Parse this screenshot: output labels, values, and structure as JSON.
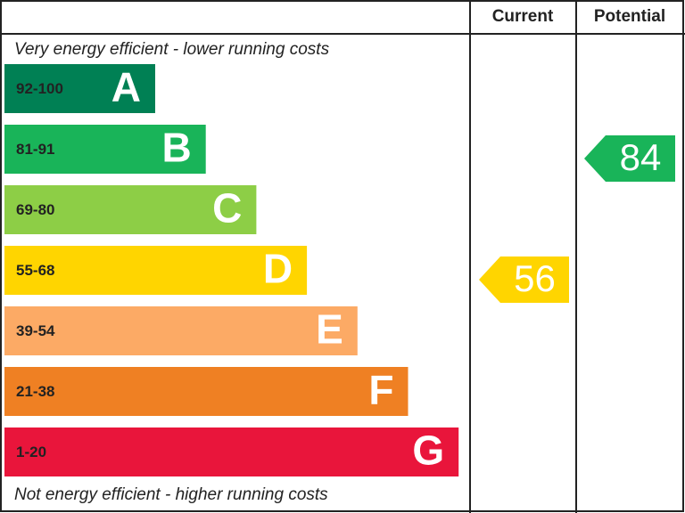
{
  "chart_data": {
    "type": "epc",
    "headers": [
      "Current",
      "Potential"
    ],
    "top_note": "Very energy efficient - lower running costs",
    "bottom_note": "Not energy efficient - higher running costs",
    "bands": [
      {
        "range": "92-100",
        "letter": "A",
        "color": "#008054"
      },
      {
        "range": "81-91",
        "letter": "B",
        "color": "#19b459"
      },
      {
        "range": "69-80",
        "letter": "C",
        "color": "#8dce46"
      },
      {
        "range": "55-68",
        "letter": "D",
        "color": "#ffd500"
      },
      {
        "range": "39-54",
        "letter": "E",
        "color": "#fcaa65"
      },
      {
        "range": "21-38",
        "letter": "F",
        "color": "#ef8023"
      },
      {
        "range": "1-20",
        "letter": "G",
        "color": "#e9153b"
      }
    ],
    "current": 56,
    "potential": 84
  }
}
